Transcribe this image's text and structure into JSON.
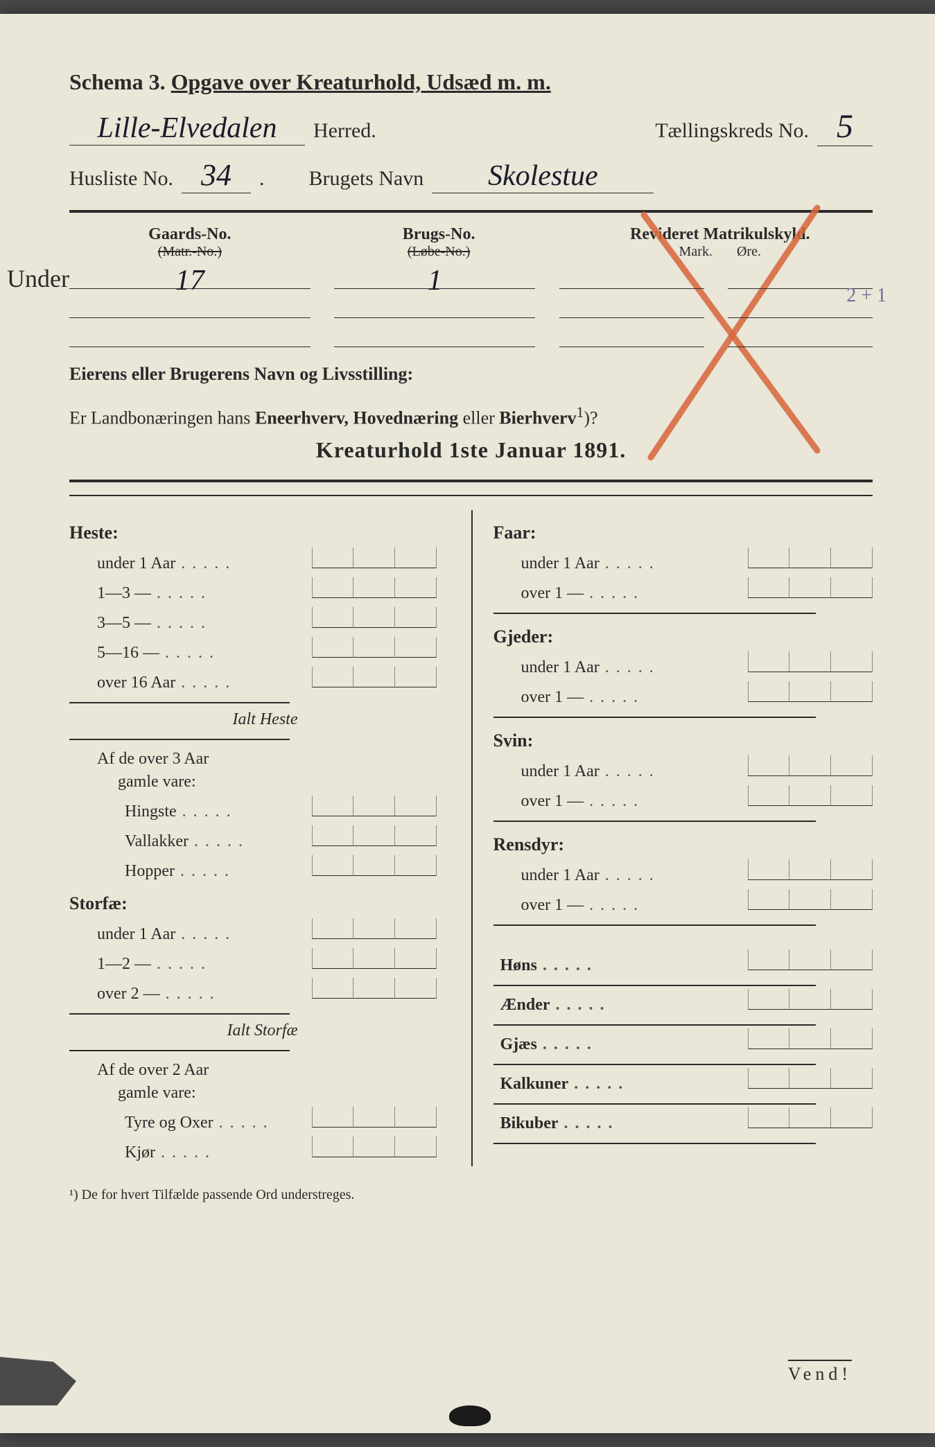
{
  "header": {
    "schema": "Schema 3.",
    "title": "Opgave over Kreaturhold, Udsæd m. m.",
    "herred_hw": "Lille-Elvedalen",
    "herred_label": "Herred.",
    "tk_label": "Tællingskreds No.",
    "tk_value": "5",
    "husliste_label": "Husliste No.",
    "husliste_value": "34",
    "brug_label": "Brugets Navn",
    "brug_value": "Skolestue"
  },
  "cols": {
    "gaards": "Gaards-No.",
    "gaards_sub": "(Matr.-No.)",
    "brugs": "Brugs-No.",
    "brugs_sub": "(Løbe-No.)",
    "rev": "Revideret Matrikulskyld.",
    "mark": "Mark.",
    "ore": "Øre."
  },
  "fills": {
    "under": "Under",
    "gaards_val": "17",
    "brugs_val": "1",
    "pencil": "2 + 1"
  },
  "owner_label": "Eierens eller Brugerens Navn og Livsstilling:",
  "question": {
    "pre": "Er Landbonæringen hans ",
    "b1": "Eneerhverv, Hovednæring",
    "mid": " eller ",
    "b2": "Bierhverv",
    "sup": "1",
    "end": ")?"
  },
  "kreatur_title": "Kreaturhold 1ste Januar 1891.",
  "left": {
    "heste": "Heste:",
    "heste_rows": [
      "under 1 Aar",
      "1—3   —",
      "3—5   —",
      "5—16  —",
      "over 16 Aar"
    ],
    "ialt_heste": "Ialt Heste",
    "af3": "Af de over 3 Aar",
    "gamle": "gamle vare:",
    "af3_rows": [
      "Hingste",
      "Vallakker",
      "Hopper"
    ],
    "storfae": "Storfæ:",
    "storfae_rows": [
      "under 1 Aar",
      "1—2   —",
      "over 2   —"
    ],
    "ialt_storfae": "Ialt Storfæ",
    "af2": "Af de over 2 Aar",
    "af2_rows": [
      "Tyre og Oxer",
      "Kjør"
    ]
  },
  "right": {
    "faar": "Faar:",
    "faar_rows": [
      "under 1 Aar",
      "over 1   —"
    ],
    "gjeder": "Gjeder:",
    "gjeder_rows": [
      "under 1 Aar",
      "over 1   —"
    ],
    "svin": "Svin:",
    "svin_rows": [
      "under 1 Aar",
      "over 1   —"
    ],
    "rensdyr": "Rensdyr:",
    "rensdyr_rows": [
      "under 1 Aar",
      "over 1   —"
    ],
    "singles": [
      "Høns",
      "Ænder",
      "Gjæs",
      "Kalkuner",
      "Bikuber"
    ]
  },
  "footnote": "¹) De for hvert Tilfælde passende Ord understreges.",
  "vend": "Vend!",
  "colors": {
    "paper": "#eae6d8",
    "ink": "#2a2a2a",
    "red_x": "#d8663a",
    "pencil": "#7a6a9a"
  }
}
